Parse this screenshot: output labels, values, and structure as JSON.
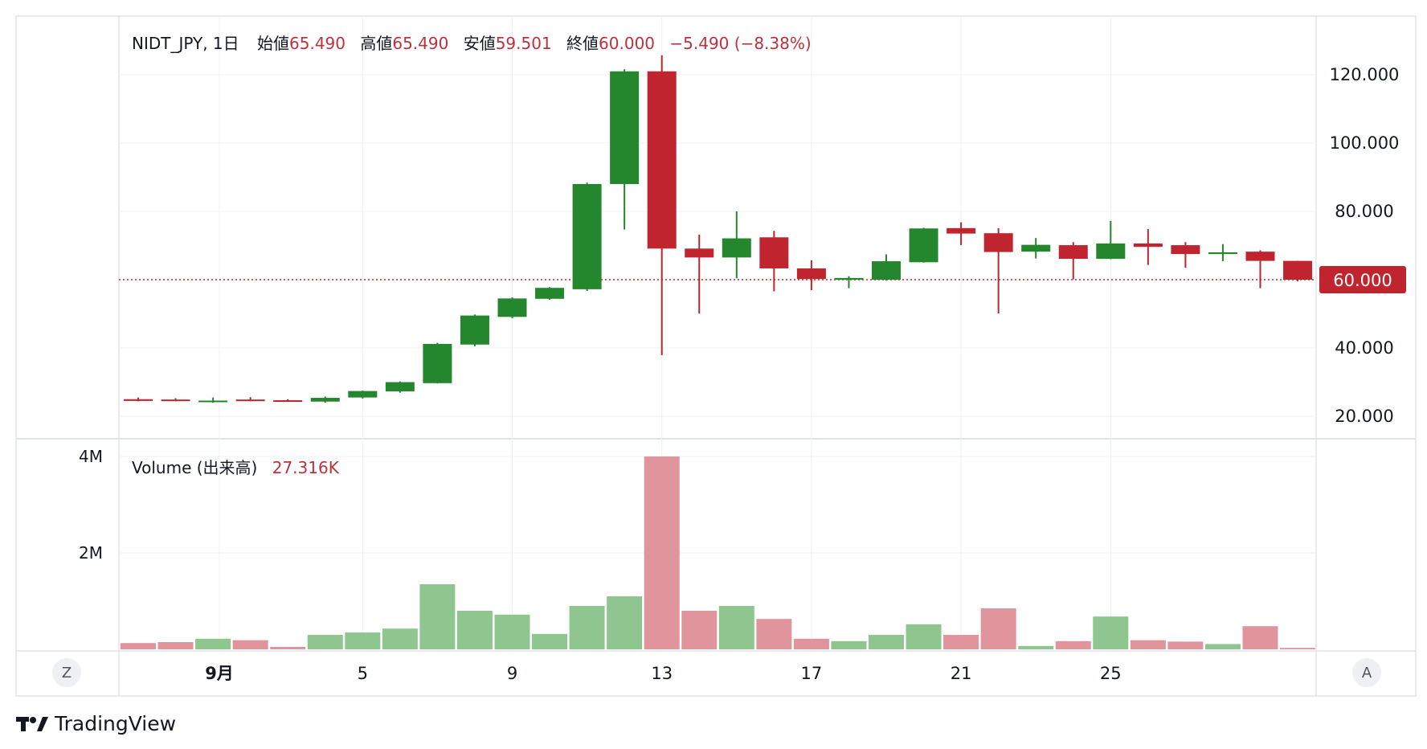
{
  "legend": {
    "symbol": "NIDT_JPY, 1日",
    "open_label": "始値",
    "open_value": "65.490",
    "high_label": "高値",
    "high_value": "65.490",
    "low_label": "安値",
    "low_value": "59.501",
    "close_label": "終値",
    "close_value": "60.000",
    "change": "−5.490 (−8.38%)"
  },
  "volume_legend": {
    "label": "Volume (出来高)",
    "value": "27.316K"
  },
  "price_axis": {
    "ticks": [
      "120.000",
      "100.000",
      "80.000",
      "60.000",
      "40.000",
      "20.000"
    ],
    "last_price_label": "60.000"
  },
  "volume_axis": {
    "ticks": [
      "4M",
      "2M"
    ]
  },
  "time_axis": {
    "labels": [
      "9月",
      "5",
      "9",
      "13",
      "17",
      "21",
      "25"
    ]
  },
  "buttons": {
    "left": "Z",
    "right": "A"
  },
  "brand": {
    "name": "TradingView"
  },
  "colors": {
    "up": "#24872e",
    "down": "#c0242f",
    "vol_up": "#8fc58f",
    "vol_down": "#e0949b",
    "last_price": "#c0242f"
  },
  "chart_data": {
    "type": "candlestick",
    "ylim": [
      16,
      126
    ],
    "volume_ylim": [
      0,
      4.4
    ],
    "volume_unit": "M",
    "candles": [
      {
        "o": 25.0,
        "h": 25.5,
        "l": 24.4,
        "c": 24.5,
        "v": 0.13
      },
      {
        "o": 24.9,
        "h": 25.3,
        "l": 24.4,
        "c": 24.5,
        "v": 0.15
      },
      {
        "o": 24.3,
        "h": 25.5,
        "l": 24.0,
        "c": 24.6,
        "v": 0.22
      },
      {
        "o": 24.9,
        "h": 25.6,
        "l": 24.4,
        "c": 24.5,
        "v": 0.19
      },
      {
        "o": 24.7,
        "h": 25.0,
        "l": 24.4,
        "c": 24.5,
        "v": 0.05
      },
      {
        "o": 24.3,
        "h": 25.8,
        "l": 24.0,
        "c": 25.4,
        "v": 0.3
      },
      {
        "o": 25.5,
        "h": 27.5,
        "l": 25.2,
        "c": 27.4,
        "v": 0.35
      },
      {
        "o": 27.3,
        "h": 30.2,
        "l": 26.9,
        "c": 30.0,
        "v": 0.43
      },
      {
        "o": 29.7,
        "h": 41.5,
        "l": 29.6,
        "c": 41.2,
        "v": 1.35
      },
      {
        "o": 41.0,
        "h": 49.8,
        "l": 40.5,
        "c": 49.5,
        "v": 0.8
      },
      {
        "o": 49.1,
        "h": 54.8,
        "l": 48.7,
        "c": 54.5,
        "v": 0.72
      },
      {
        "o": 54.4,
        "h": 57.8,
        "l": 54.1,
        "c": 57.6,
        "v": 0.32
      },
      {
        "o": 57.2,
        "h": 88.4,
        "l": 56.7,
        "c": 88.0,
        "v": 0.9
      },
      {
        "o": 88.0,
        "h": 121.6,
        "l": 74.7,
        "c": 121.0,
        "v": 1.1
      },
      {
        "o": 121.0,
        "h": 125.7,
        "l": 37.9,
        "c": 69.1,
        "v": 4.0
      },
      {
        "o": 69.1,
        "h": 73.2,
        "l": 50.1,
        "c": 66.5,
        "v": 0.8
      },
      {
        "o": 66.5,
        "h": 80.0,
        "l": 60.4,
        "c": 72.1,
        "v": 0.9
      },
      {
        "o": 72.4,
        "h": 74.3,
        "l": 56.6,
        "c": 63.3,
        "v": 0.63
      },
      {
        "o": 63.3,
        "h": 65.7,
        "l": 56.9,
        "c": 60.2,
        "v": 0.22
      },
      {
        "o": 60.0,
        "h": 61.0,
        "l": 57.5,
        "c": 60.5,
        "v": 0.17
      },
      {
        "o": 60.0,
        "h": 67.4,
        "l": 59.7,
        "c": 65.4,
        "v": 0.3
      },
      {
        "o": 65.1,
        "h": 75.2,
        "l": 65.0,
        "c": 75.0,
        "v": 0.52
      },
      {
        "o": 75.1,
        "h": 76.8,
        "l": 70.1,
        "c": 73.5,
        "v": 0.3
      },
      {
        "o": 73.6,
        "h": 75.1,
        "l": 50.1,
        "c": 68.1,
        "v": 0.85
      },
      {
        "o": 68.2,
        "h": 72.2,
        "l": 66.2,
        "c": 70.2,
        "v": 0.07
      },
      {
        "o": 70.1,
        "h": 71.0,
        "l": 60.1,
        "c": 66.1,
        "v": 0.17
      },
      {
        "o": 66.1,
        "h": 77.2,
        "l": 66.0,
        "c": 70.6,
        "v": 0.68
      },
      {
        "o": 70.6,
        "h": 74.8,
        "l": 64.3,
        "c": 69.6,
        "v": 0.19
      },
      {
        "o": 70.1,
        "h": 71.0,
        "l": 63.5,
        "c": 67.5,
        "v": 0.16
      },
      {
        "o": 67.5,
        "h": 70.4,
        "l": 65.4,
        "c": 68.0,
        "v": 0.11
      },
      {
        "o": 68.2,
        "h": 68.6,
        "l": 57.5,
        "c": 65.5,
        "v": 0.48
      },
      {
        "o": 65.5,
        "h": 65.5,
        "l": 59.5,
        "c": 60.0,
        "v": 0.03
      }
    ]
  }
}
